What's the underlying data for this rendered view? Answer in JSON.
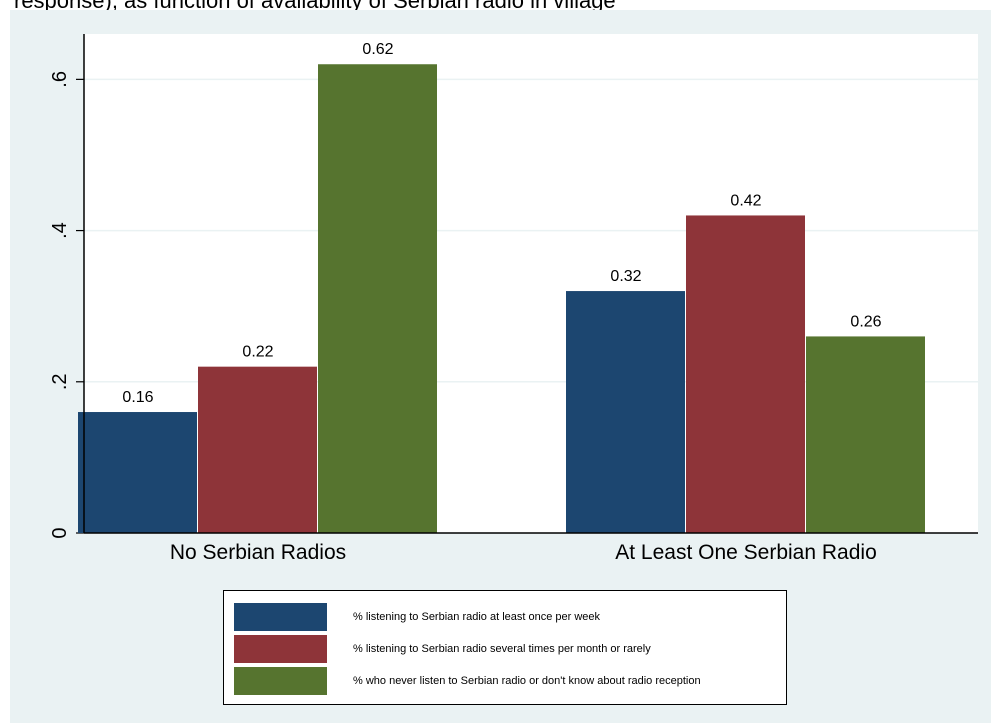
{
  "title": "response), as function of availability of Serbian radio in village",
  "colors": {
    "background": "#eaf2f3",
    "plot_background": "#ffffff",
    "grid": "#eaf2f3",
    "series": [
      "#1c4670",
      "#8e3439",
      "#56742f"
    ]
  },
  "chart_data": {
    "type": "bar",
    "categories": [
      "No Serbian Radios",
      "At Least One Serbian Radio"
    ],
    "series": [
      {
        "name": "% listening to Serbian radio at least once per week",
        "values": [
          0.16,
          0.32
        ],
        "labels": [
          "0.16",
          "0.32"
        ]
      },
      {
        "name": "% listening to Serbian radio several times per month or rarely",
        "values": [
          0.22,
          0.42
        ],
        "labels": [
          "0.22",
          "0.42"
        ]
      },
      {
        "name": "% who never listen to Serbian radio or don't know about radio reception",
        "values": [
          0.62,
          0.26
        ],
        "labels": [
          "0.62",
          "0.26"
        ]
      }
    ],
    "title": "response), as function of availability of Serbian radio in village",
    "xlabel": "",
    "ylabel": "",
    "ylim": [
      0,
      0.66
    ],
    "yticks": [
      0,
      0.2,
      0.4,
      0.6
    ],
    "ytick_labels": [
      "0",
      ".2",
      ".4",
      ".6"
    ],
    "grid": true,
    "legend_position": "bottom"
  }
}
